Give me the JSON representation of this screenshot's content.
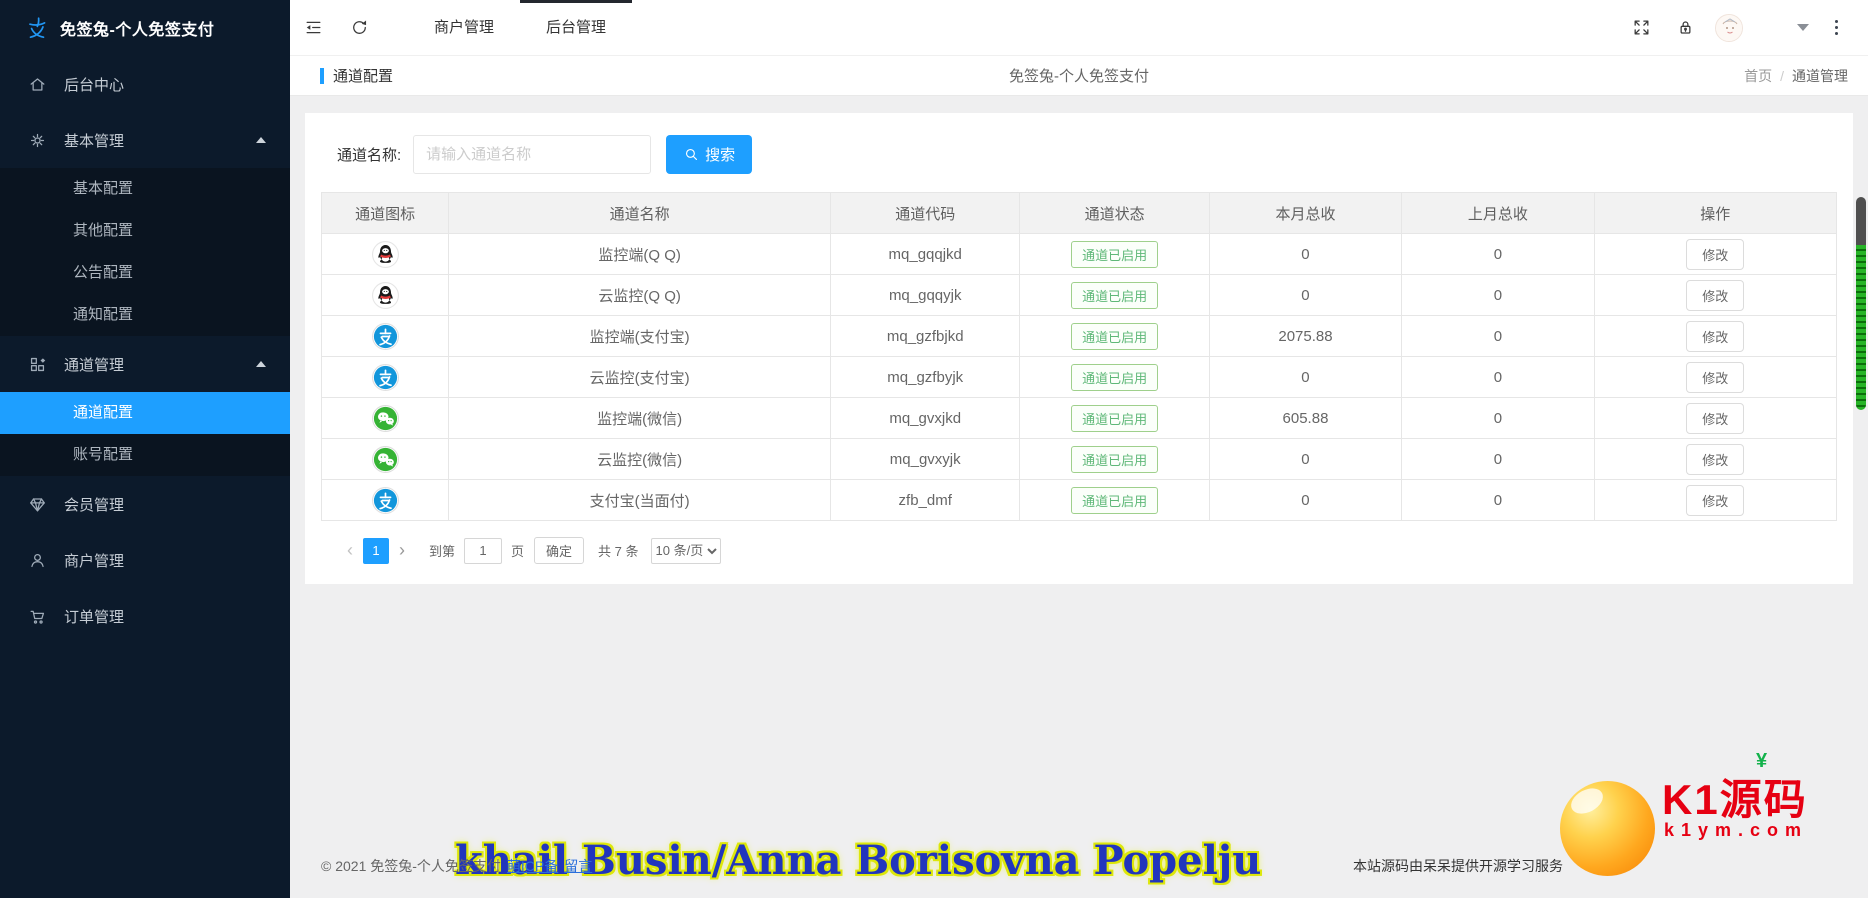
{
  "app": {
    "title": "免签兔-个人免签支付"
  },
  "colors": {
    "accent": "#1E9FFF",
    "status_green": "#5FB878",
    "sidebar_bg": "#0c1a2b",
    "sidebar_sub_bg": "#0a1420",
    "active_item_bg": "#1E9FFF"
  },
  "sidebar": {
    "logo_icon": "alipay-zhi-icon",
    "title": "免签兔-个人免签支付",
    "menu": [
      {
        "key": "dashboard",
        "icon": "home",
        "label": "后台中心",
        "children": []
      },
      {
        "key": "basic-mgmt",
        "icon": "gear",
        "label": "基本管理",
        "expanded": true,
        "children": [
          {
            "key": "basic-config",
            "label": "基本配置"
          },
          {
            "key": "other-config",
            "label": "其他配置"
          },
          {
            "key": "announce-config",
            "label": "公告配置"
          },
          {
            "key": "notify-config",
            "label": "通知配置"
          }
        ]
      },
      {
        "key": "channel-mgmt",
        "icon": "grid",
        "label": "通道管理",
        "expanded": true,
        "children": [
          {
            "key": "channel-config",
            "label": "通道配置",
            "active": true
          },
          {
            "key": "account-config",
            "label": "账号配置"
          }
        ]
      },
      {
        "key": "member-mgmt",
        "icon": "diamond",
        "label": "会员管理",
        "children": []
      },
      {
        "key": "merchant-mgmt",
        "icon": "user",
        "label": "商户管理",
        "children": []
      },
      {
        "key": "order-mgmt",
        "icon": "cart",
        "label": "订单管理",
        "children": []
      }
    ]
  },
  "header": {
    "icons": [
      "toggle-sidebar-icon",
      "refresh-icon",
      "fullscreen-icon",
      "lock-icon",
      "avatar",
      "caret-down-icon",
      "kebab-menu-icon"
    ],
    "tabs": [
      {
        "key": "merchant",
        "label": "商户管理",
        "active": false
      },
      {
        "key": "admin",
        "label": "后台管理",
        "active": true
      }
    ]
  },
  "breadcrumb": {
    "page": "通道配置",
    "center": "免签兔-个人免签支付",
    "home": "首页",
    "sep": "/",
    "current": "通道管理"
  },
  "search": {
    "label": "通道名称:",
    "placeholder": "请输入通道名称",
    "button": "搜索"
  },
  "table": {
    "headers": [
      "通道图标",
      "通道名称",
      "通道代码",
      "通道状态",
      "本月总收",
      "上月总收",
      "操作"
    ],
    "rows": [
      {
        "icon": "qq",
        "name": "监控端(Q Q)",
        "code": "mq_gqqjkd",
        "status": "通道已启用",
        "month": "0",
        "last_month": "0",
        "action": "修改"
      },
      {
        "icon": "qq",
        "name": "云监控(Q Q)",
        "code": "mq_gqqyjk",
        "status": "通道已启用",
        "month": "0",
        "last_month": "0",
        "action": "修改"
      },
      {
        "icon": "alipay",
        "name": "监控端(支付宝)",
        "code": "mq_gzfbjkd",
        "status": "通道已启用",
        "month": "2075.88",
        "last_month": "0",
        "action": "修改"
      },
      {
        "icon": "alipay",
        "name": "云监控(支付宝)",
        "code": "mq_gzfbyjk",
        "status": "通道已启用",
        "month": "0",
        "last_month": "0",
        "action": "修改"
      },
      {
        "icon": "wechat",
        "name": "监控端(微信)",
        "code": "mq_gvxjkd",
        "status": "通道已启用",
        "month": "605.88",
        "last_month": "0",
        "action": "修改"
      },
      {
        "icon": "wechat",
        "name": "云监控(微信)",
        "code": "mq_gvxyjk",
        "status": "通道已启用",
        "month": "0",
        "last_month": "0",
        "action": "修改"
      },
      {
        "icon": "alipay",
        "name": "支付宝(当面付)",
        "code": "zfb_dmf",
        "status": "通道已启用",
        "month": "0",
        "last_month": "0",
        "action": "修改"
      }
    ]
  },
  "pagination": {
    "prev": "‹",
    "current_page": "1",
    "next": "›",
    "goto_label": "到第",
    "goto_value": "1",
    "page_label": "页",
    "confirm": "确定",
    "total": "共 7 条",
    "per_page": "10 条/页"
  },
  "footer": {
    "copyright": "© 2021 免签兔-个人免签支付",
    "icp": "萌ICP备",
    "message": "留言",
    "right_text": "本站源码由呆呆提供开源学习服务"
  },
  "watermark": {
    "text": "khail Busin/Anna Borisovna Popelju"
  },
  "promo": {
    "brand": "K1源码",
    "yen": "¥",
    "domain": "k1ym.com"
  }
}
